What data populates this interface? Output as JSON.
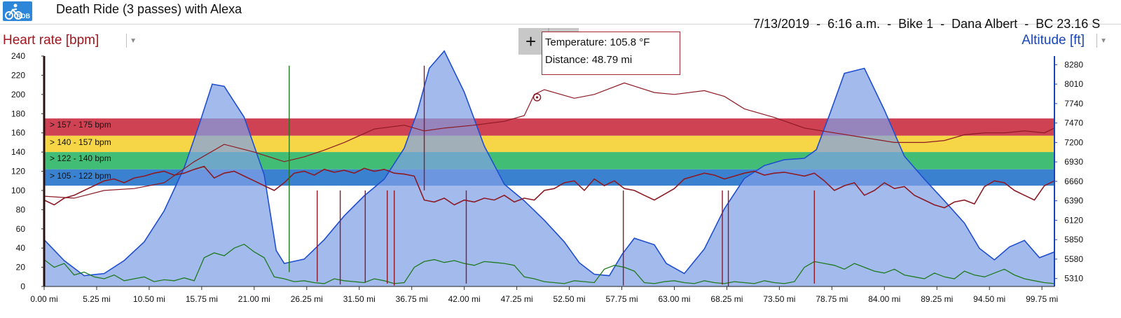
{
  "header": {
    "logo_text": "RDB",
    "logo_icon": "cyclist-icon",
    "ride_title": "Death Ride (3 passes) with Alexa",
    "meta": [
      "7/13/2019",
      "6:16 a.m.",
      "Bike 1",
      "Dana Albert",
      "BC 23.16 S"
    ],
    "meta_separator": "  -  "
  },
  "tooltip": {
    "line1": "Temperature: 105.8 °F",
    "line2": "Distance: 48.79 mi"
  },
  "toolbar": {
    "crosshair_icon": "crosshair-plus-icon"
  },
  "colors": {
    "heart_rate": "#8c1a24",
    "altitude_line": "#1f4fcf",
    "altitude_fill": "#7f9fe6",
    "temperature": "#1f7a20",
    "zone_red": "#c8283c",
    "zone_yellow": "#f5d02c",
    "zone_green": "#28b463",
    "zone_blue": "#1f71c8",
    "zone_lightblue": "#3aa0c8",
    "cursor_line": "#bb6677"
  },
  "chart_data": {
    "type": "line",
    "title": "",
    "xlabel": "",
    "ylabel": "Heart rate [bpm]",
    "y2label": "Altitude [ft]",
    "xlim": [
      0,
      101
    ],
    "ylim": [
      0,
      240
    ],
    "y2lim": [
      5200,
      8400
    ],
    "x_ticks": [
      "0.00 mi",
      "5.25 mi",
      "10.50 mi",
      "15.75 mi",
      "21.00 mi",
      "26.25 mi",
      "31.50 mi",
      "36.75 mi",
      "42.00 mi",
      "47.25 mi",
      "52.50 mi",
      "57.75 mi",
      "63.00 mi",
      "68.25 mi",
      "73.50 mi",
      "78.75 mi",
      "84.00 mi",
      "89.25 mi",
      "94.50 mi",
      "99.75 mi"
    ],
    "y_ticks": [
      0,
      20,
      40,
      60,
      80,
      100,
      120,
      140,
      160,
      180,
      200,
      220,
      240
    ],
    "y2_ticks": [
      5310,
      5580,
      5850,
      6120,
      6390,
      6660,
      6930,
      7200,
      7470,
      7740,
      8010,
      8280
    ],
    "zones": [
      {
        "label": "157 - 175 bpm",
        "from": 157,
        "to": 175,
        "color": "#c8283c"
      },
      {
        "label": "140 - 157 bpm",
        "from": 140,
        "to": 157,
        "color": "#f5d02c"
      },
      {
        "label": "122 - 140 bpm",
        "from": 122,
        "to": 140,
        "color": "#28b463"
      },
      {
        "label": "105 - 122 bpm",
        "from": 105,
        "to": 122,
        "color": "#1f71c8"
      }
    ],
    "cursor_x": 48.79,
    "series": [
      {
        "name": "Heart rate",
        "axis": "left",
        "x": [
          0,
          1,
          2,
          3,
          4,
          5,
          6,
          7,
          8,
          9,
          10,
          11,
          12,
          13,
          14,
          15,
          16,
          17,
          18,
          19,
          20,
          21,
          22,
          23,
          24,
          25,
          26,
          27,
          28,
          29,
          30,
          31,
          32,
          33,
          34,
          35,
          36,
          37,
          38,
          39,
          40,
          41,
          42,
          43,
          44,
          45,
          46,
          47,
          48,
          49,
          50,
          51,
          52,
          53,
          54,
          55,
          56,
          57,
          58,
          59,
          60,
          61,
          62,
          63,
          64,
          65,
          66,
          67,
          68,
          69,
          70,
          71,
          72,
          73,
          74,
          75,
          76,
          77,
          78,
          79,
          80,
          81,
          82,
          83,
          84,
          85,
          86,
          87,
          88,
          89,
          90,
          91,
          92,
          93,
          94,
          95,
          96,
          97,
          98,
          99,
          100,
          101
        ],
        "y": [
          90,
          85,
          92,
          95,
          100,
          105,
          110,
          112,
          108,
          113,
          115,
          118,
          120,
          116,
          118,
          122,
          125,
          113,
          118,
          120,
          115,
          110,
          105,
          100,
          108,
          118,
          120,
          116,
          122,
          119,
          121,
          118,
          123,
          120,
          122,
          118,
          117,
          115,
          90,
          88,
          92,
          85,
          90,
          88,
          92,
          90,
          95,
          88,
          92,
          90,
          100,
          102,
          108,
          110,
          100,
          112,
          105,
          110,
          102,
          100,
          95,
          90,
          96,
          102,
          112,
          115,
          118,
          116,
          112,
          115,
          118,
          120,
          116,
          118,
          119,
          117,
          115,
          118,
          110,
          100,
          105,
          108,
          95,
          100,
          108,
          102,
          104,
          95,
          90,
          85,
          82,
          88,
          90,
          86,
          104,
          110,
          108,
          100,
          95,
          90,
          105,
          110
        ],
        "spikes": [
          {
            "x": 27.3,
            "y": 5
          },
          {
            "x": 29.6,
            "y": 2
          },
          {
            "x": 32.1,
            "y": 4
          },
          {
            "x": 34.3,
            "y": 3
          },
          {
            "x": 35.0,
            "y": 1
          },
          {
            "x": 38.0,
            "y": 230
          },
          {
            "x": 42.2,
            "y": 3
          },
          {
            "x": 57.9,
            "y": 1
          },
          {
            "x": 67.8,
            "y": 2
          },
          {
            "x": 68.4,
            "y": 0
          },
          {
            "x": 77.0,
            "y": 3
          }
        ]
      },
      {
        "name": "Temperature",
        "axis": "left",
        "x": [
          0,
          3,
          6,
          9,
          12,
          15,
          18,
          21,
          24,
          26,
          28,
          30,
          33,
          36,
          38,
          40,
          43,
          46,
          48,
          49,
          50,
          53,
          55,
          58,
          61,
          63,
          66,
          68,
          70,
          73,
          76,
          79,
          82,
          85,
          88,
          90,
          92,
          94,
          96,
          98,
          100,
          101
        ],
        "y": [
          94,
          92,
          100,
          102,
          108,
          130,
          148,
          140,
          130,
          135,
          142,
          150,
          164,
          168,
          162,
          165,
          168,
          172,
          178,
          200,
          205,
          196,
          200,
          212,
          202,
          200,
          204,
          198,
          185,
          176,
          165,
          160,
          155,
          150,
          150,
          152,
          158,
          160,
          160,
          162,
          160,
          165
        ]
      },
      {
        "name": "Power",
        "axis": "left",
        "x": [
          0,
          1,
          2,
          3,
          4,
          5,
          6,
          7,
          8,
          9,
          10,
          11,
          12,
          13,
          14,
          15,
          16,
          17,
          18,
          19,
          20,
          21,
          22,
          23,
          24,
          25,
          26,
          27,
          28,
          29,
          30,
          31,
          32,
          33,
          34,
          35,
          36,
          37,
          38,
          39,
          40,
          41,
          42,
          43,
          44,
          45,
          46,
          47,
          48,
          49,
          50,
          51,
          52,
          53,
          54,
          55,
          56,
          57,
          58,
          59,
          60,
          61,
          62,
          63,
          64,
          65,
          66,
          67,
          68,
          69,
          70,
          71,
          72,
          73,
          74,
          75,
          76,
          77,
          78,
          79,
          80,
          81,
          82,
          83,
          84,
          85,
          86,
          87,
          88,
          89,
          90,
          91,
          92,
          93,
          94,
          95,
          96,
          97,
          98,
          99,
          100,
          101
        ],
        "y": [
          28,
          20,
          24,
          12,
          15,
          10,
          8,
          12,
          6,
          8,
          10,
          5,
          7,
          6,
          9,
          6,
          30,
          35,
          32,
          40,
          44,
          36,
          30,
          10,
          8,
          5,
          6,
          4,
          3,
          8,
          6,
          5,
          4,
          8,
          6,
          3,
          4,
          20,
          26,
          28,
          25,
          27,
          24,
          22,
          26,
          25,
          24,
          22,
          10,
          8,
          5,
          4,
          3,
          6,
          5,
          4,
          18,
          22,
          20,
          16,
          4,
          3,
          5,
          6,
          4,
          3,
          6,
          4,
          3,
          5,
          4,
          3,
          6,
          4,
          3,
          5,
          20,
          26,
          24,
          22,
          18,
          24,
          20,
          16,
          14,
          18,
          12,
          10,
          8,
          14,
          10,
          8,
          16,
          12,
          10,
          14,
          18,
          12,
          8,
          6,
          4,
          3
        ]
      },
      {
        "name": "Altitude",
        "axis": "right",
        "x": [
          0,
          2,
          4,
          6,
          8,
          10,
          12,
          14,
          15.5,
          16.8,
          18,
          20,
          22,
          23.2,
          24,
          26,
          28,
          30,
          32,
          34,
          36,
          37.3,
          38.5,
          40,
          42,
          44,
          46,
          48,
          50,
          52,
          53.5,
          55,
          56.5,
          57.8,
          59,
          61,
          62.2,
          64,
          66,
          68,
          70,
          72,
          74,
          76,
          77.2,
          78.5,
          80,
          82,
          84,
          86,
          88,
          90,
          92,
          93.5,
          95,
          96.5,
          98,
          99.5,
          101
        ],
        "y": [
          5850,
          5560,
          5350,
          5380,
          5560,
          5820,
          6250,
          6850,
          7450,
          8010,
          7980,
          7550,
          6750,
          5700,
          5520,
          5580,
          5850,
          6180,
          6460,
          6690,
          7120,
          7620,
          8230,
          8470,
          7900,
          7150,
          6620,
          6390,
          6120,
          5820,
          5530,
          5370,
          5350,
          5650,
          5870,
          5780,
          5520,
          5380,
          5720,
          6280,
          6700,
          6880,
          6960,
          6980,
          7100,
          7580,
          8160,
          8230,
          7650,
          7010,
          6690,
          6390,
          6080,
          5730,
          5570,
          5750,
          5840,
          5600,
          5680
        ]
      }
    ]
  }
}
